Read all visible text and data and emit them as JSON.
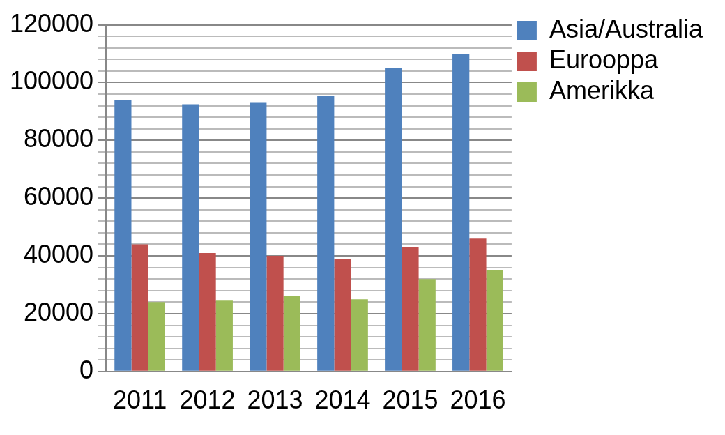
{
  "chart_data": {
    "type": "bar",
    "categories": [
      "2011",
      "2012",
      "2013",
      "2014",
      "2015",
      "2016"
    ],
    "series": [
      {
        "name": "Asia/Australia",
        "color": "#4f81bd",
        "values": [
          94000,
          92500,
          93000,
          95300,
          105000,
          110000
        ]
      },
      {
        "name": "Eurooppa",
        "color": "#c0504d",
        "values": [
          44000,
          41000,
          40000,
          39000,
          43000,
          46000
        ]
      },
      {
        "name": "Amerikka",
        "color": "#9bbb59",
        "values": [
          24000,
          24500,
          26000,
          25000,
          32000,
          35000
        ]
      }
    ],
    "ylim": [
      0,
      120000
    ],
    "yticks": [
      0,
      {
        "value": 4000,
        "label": null
      },
      {
        "value": 8000,
        "label": null
      },
      {
        "value": 12000,
        "label": null
      },
      {
        "value": 16000,
        "label": null
      },
      20000,
      {
        "value": 24000,
        "label": null
      },
      {
        "value": 28000,
        "label": null
      },
      {
        "value": 32000,
        "label": null
      },
      {
        "value": 36000,
        "label": null
      },
      40000,
      {
        "value": 44000,
        "label": null
      },
      {
        "value": 48000,
        "label": null
      },
      {
        "value": 52000,
        "label": null
      },
      {
        "value": 56000,
        "label": null
      },
      60000,
      {
        "value": 64000,
        "label": null
      },
      {
        "value": 68000,
        "label": null
      },
      {
        "value": 72000,
        "label": null
      },
      {
        "value": 76000,
        "label": null
      },
      80000,
      {
        "value": 84000,
        "label": null
      },
      {
        "value": 88000,
        "label": null
      },
      {
        "value": 92000,
        "label": null
      },
      {
        "value": 96000,
        "label": null
      },
      100000,
      {
        "value": 104000,
        "label": null
      },
      {
        "value": 108000,
        "label": null
      },
      {
        "value": 112000,
        "label": null
      },
      {
        "value": 116000,
        "label": null
      },
      120000
    ],
    "grid": "y",
    "legend": "top right"
  }
}
